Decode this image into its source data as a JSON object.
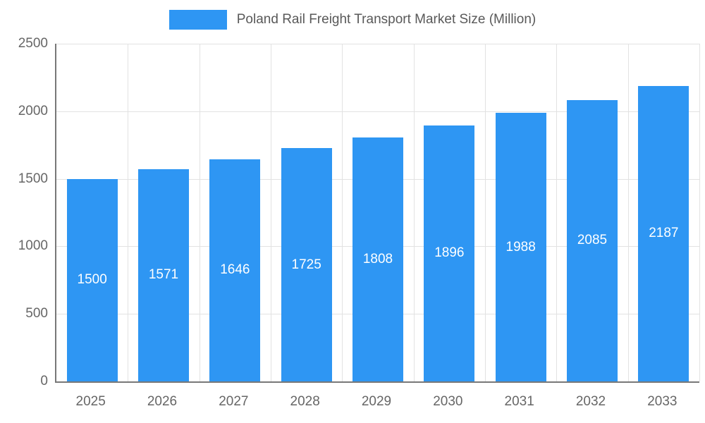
{
  "chart_data": {
    "type": "bar",
    "title": "Poland Rail Freight Transport Market Size (Million)",
    "categories": [
      "2025",
      "2026",
      "2027",
      "2028",
      "2029",
      "2030",
      "2031",
      "2032",
      "2033"
    ],
    "values": [
      1500,
      1571,
      1646,
      1725,
      1808,
      1896,
      1988,
      2085,
      2187
    ],
    "xlabel": "",
    "ylabel": "",
    "ylim": [
      0,
      2500
    ],
    "yticks": [
      0,
      500,
      1000,
      1500,
      2000,
      2500
    ],
    "grid": true,
    "legend_position": "top",
    "bar_color": "#2e96f3",
    "bar_label_color": "#ffffff",
    "axis_label_color": "#666666",
    "title_color": "#595959",
    "gridline_color": "#e2e2e2",
    "axis_line_color": "#787878"
  }
}
